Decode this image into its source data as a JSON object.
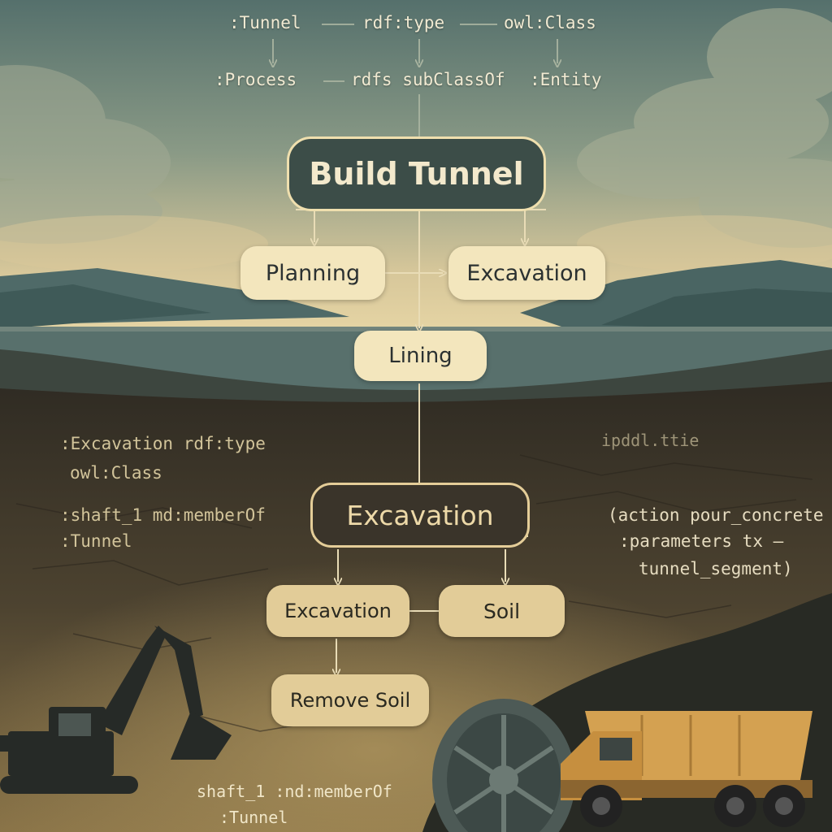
{
  "ontology": {
    "row1": [
      ":Tunnel",
      "rdf:type",
      "owl:Class"
    ],
    "row2": [
      ":Process",
      "rdfs subClassOf",
      ":Entity"
    ]
  },
  "nodes": {
    "build_tunnel": "Build Tunnel",
    "planning": "Planning",
    "excavation_top": "Excavation",
    "lining": "Lining",
    "excavation_main": "Excavation",
    "excavation_sub": "Excavation",
    "soil": "Soil",
    "remove_soil": "Remove Soil"
  },
  "left_code": {
    "line1": ":Excavation rdf:type",
    "line2": "owl:Class",
    "line3": ":shaft_1 md:memberOf",
    "line4": ":Tunnel"
  },
  "right_code": {
    "filename": "ipddl.ttie",
    "line1": "(action pour_concrete",
    "line2": ":parameters tx —",
    "line3": "tunnel_segment)"
  },
  "bottom_code": {
    "line1": "shaft_1 :nd:memberOf",
    "line2": ":Tunnel"
  },
  "colors": {
    "sky": "#6f8780",
    "water": "#4f6a68",
    "ground": "#3a3328",
    "node_light": "#f3e6bd",
    "node_dark": "#3c4d48"
  }
}
